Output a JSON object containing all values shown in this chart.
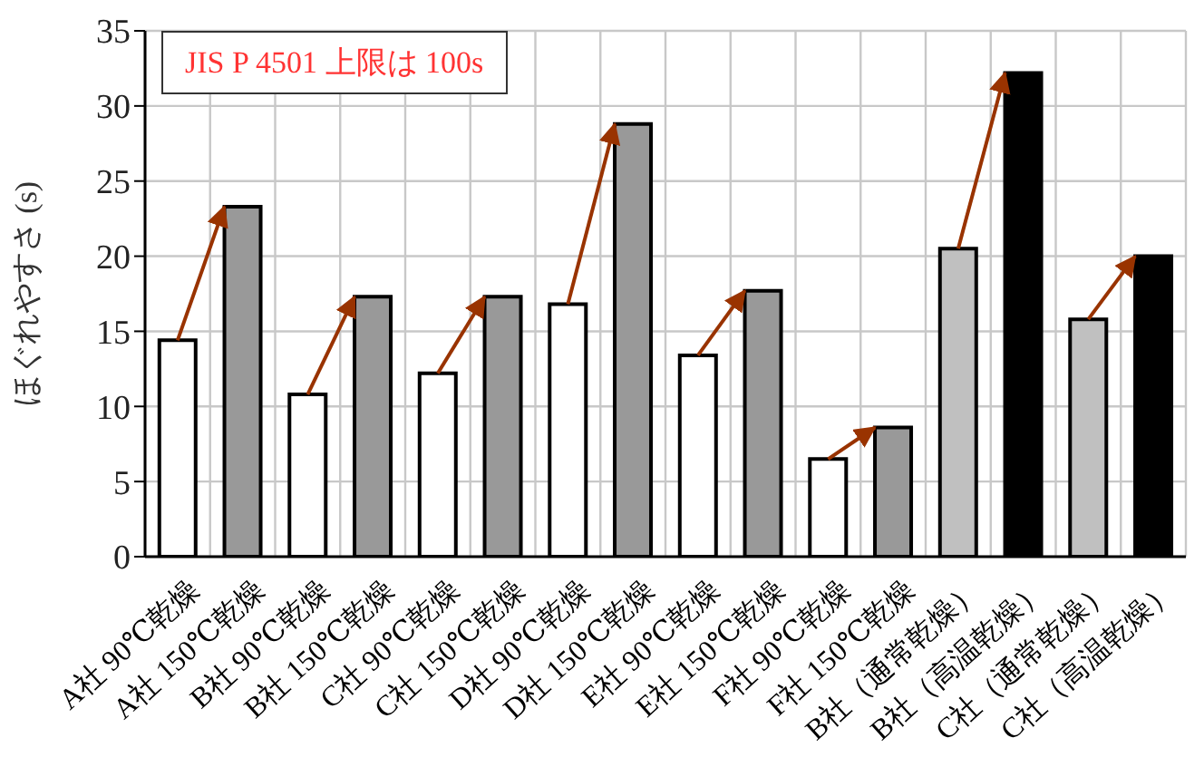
{
  "chart_data": {
    "type": "bar",
    "ylabel": "ほぐれやすさ (s)",
    "annotations": [
      "JIS P 4501 上限は 100s"
    ],
    "categories": [
      "A社 90℃乾燥",
      "A社 150℃乾燥",
      "B社 90℃乾燥",
      "B社 150℃乾燥",
      "C社 90℃乾燥",
      "C社 150℃乾燥",
      "D社 90℃乾燥",
      "D社 150℃乾燥",
      "E社 90℃乾燥",
      "E社 150℃乾燥",
      "F社 90℃乾燥",
      "F社 150℃乾燥",
      "B社（通常乾燥）",
      "B社（高温乾燥）",
      "C社（通常乾燥）",
      "C社（高温乾燥）"
    ],
    "values": [
      14.4,
      23.3,
      10.8,
      17.3,
      12.2,
      17.3,
      16.8,
      28.8,
      13.4,
      17.7,
      6.5,
      8.6,
      20.5,
      32.2,
      15.8,
      20.0
    ],
    "colors": [
      "#ffffff",
      "#999999",
      "#ffffff",
      "#999999",
      "#ffffff",
      "#999999",
      "#ffffff",
      "#999999",
      "#ffffff",
      "#999999",
      "#ffffff",
      "#999999",
      "#c0c0c0",
      "#000000",
      "#c0c0c0",
      "#000000"
    ],
    "ylim": [
      0,
      35
    ],
    "yticks": [
      0,
      5,
      10,
      15,
      20,
      25,
      30,
      35
    ],
    "grid": true
  }
}
